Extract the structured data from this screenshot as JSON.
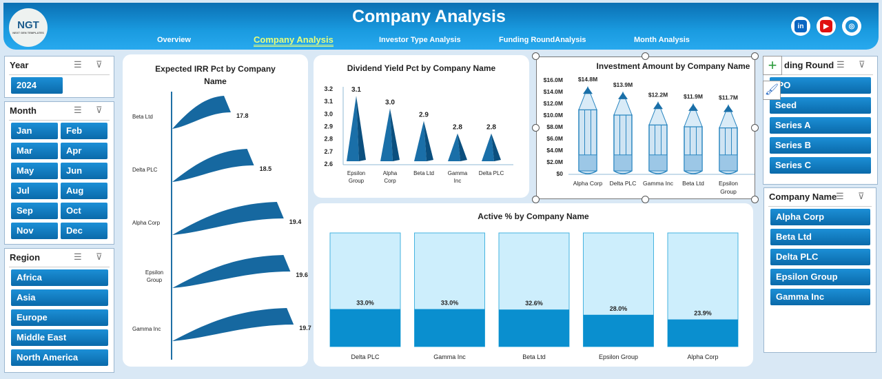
{
  "header": {
    "logo": "NGT",
    "logo_sub": "NEXT GEN TEMPLATES",
    "title": "Company Analysis",
    "nav": [
      {
        "label": "Overview"
      },
      {
        "label": "Company Analysis",
        "active": true
      },
      {
        "label": "Investor Type Analysis"
      },
      {
        "label": "Funding RoundAnalysis"
      },
      {
        "label": "Month Analysis"
      }
    ],
    "social": [
      {
        "icon": "linkedin-icon",
        "glyph": "in",
        "color": "#0a66c2"
      },
      {
        "icon": "youtube-icon",
        "glyph": "▶",
        "color": "#e01010"
      },
      {
        "icon": "globe-icon",
        "glyph": "◎",
        "color": "#1a8fd6"
      }
    ]
  },
  "slicers": {
    "year": {
      "title": "Year",
      "items": [
        "2024"
      ]
    },
    "month": {
      "title": "Month",
      "items": [
        "Jan",
        "Feb",
        "Mar",
        "Apr",
        "May",
        "Jun",
        "Jul",
        "Aug",
        "Sep",
        "Oct",
        "Nov",
        "Dec"
      ]
    },
    "region": {
      "title": "Region",
      "items": [
        "Africa",
        "Asia",
        "Europe",
        "Middle East",
        "North America"
      ]
    },
    "funding": {
      "title": "Funding Round",
      "visible_title": "ding Round",
      "items": [
        "IPO",
        "Seed",
        "Series A",
        "Series B",
        "Series C"
      ],
      "visible_first": "PO"
    },
    "company": {
      "title": "Company Name",
      "items": [
        "Alpha Corp",
        "Beta Ltd",
        "Delta PLC",
        "Epsilon Group",
        "Gamma Inc"
      ]
    }
  },
  "chart_data": [
    {
      "type": "bar",
      "orientation": "horizontal",
      "title": "Expected IRR Pct by Company Name",
      "categories": [
        "Beta Ltd",
        "Delta PLC",
        "Alpha Corp",
        "Epsilon Group",
        "Gamma Inc"
      ],
      "values": [
        17.8,
        18.5,
        19.4,
        19.6,
        19.7
      ]
    },
    {
      "type": "bar",
      "title": "Dividend Yield Pct by Company Name",
      "categories": [
        "Epsilon Group",
        "Alpha Corp",
        "Beta Ltd",
        "Gamma Inc",
        "Delta PLC"
      ],
      "values": [
        3.1,
        3.0,
        2.9,
        2.8,
        2.8
      ],
      "labels": [
        "3.1",
        "3.0",
        "2.9",
        "2.8",
        "2.8"
      ],
      "ylim": [
        2.6,
        3.2
      ],
      "yticks": [
        "2.6",
        "2.7",
        "2.8",
        "2.9",
        "3.0",
        "3.1",
        "3.2"
      ]
    },
    {
      "type": "bar",
      "title": "Investment Amount by Company Name",
      "categories": [
        "Alpha Corp",
        "Delta PLC",
        "Gamma Inc",
        "Beta Ltd",
        "Epsilon Group"
      ],
      "values": [
        14.8,
        13.9,
        12.2,
        11.9,
        11.7
      ],
      "labels": [
        "$14.8M",
        "$13.9M",
        "$12.2M",
        "$11.9M",
        "$11.7M"
      ],
      "ylim": [
        0,
        16
      ],
      "yticks": [
        "$0",
        "$2.0M",
        "$4.0M",
        "$6.0M",
        "$8.0M",
        "$10.0M",
        "$12.0M",
        "$14.0M",
        "$16.0M"
      ]
    },
    {
      "type": "bar",
      "title": "Active % by Company Name",
      "categories": [
        "Delta PLC",
        "Gamma Inc",
        "Beta Ltd",
        "Epsilon Group",
        "Alpha Corp"
      ],
      "values": [
        33.0,
        33.0,
        32.6,
        28.0,
        23.9
      ],
      "labels": [
        "33.0%",
        "33.0%",
        "32.6%",
        "28.0%",
        "23.9%"
      ],
      "ylim": [
        0,
        100
      ]
    }
  ],
  "colors": {
    "accent": "#0a6aaa",
    "light": "#cfeefc",
    "banner": "#1a9be0"
  }
}
